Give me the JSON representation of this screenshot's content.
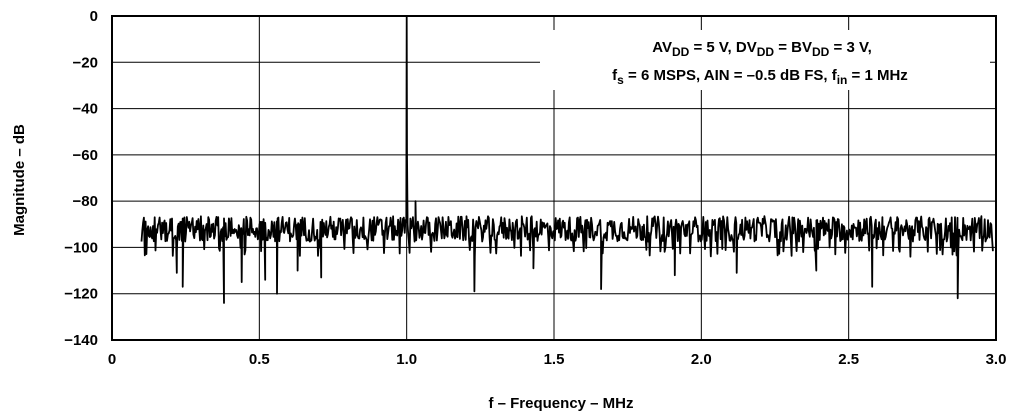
{
  "chart_data": {
    "type": "line",
    "xlabel": "f – Frequency – MHz",
    "ylabel": "Magnitude – dB",
    "xlim": [
      0,
      3.0
    ],
    "ylim": [
      -140,
      0
    ],
    "x_ticks": [
      0,
      0.5,
      1.0,
      1.5,
      2.0,
      2.5,
      3.0
    ],
    "x_tick_labels": [
      "0",
      "0.5",
      "1.0",
      "1.5",
      "2.0",
      "2.5",
      "3.0"
    ],
    "y_ticks": [
      0,
      -20,
      -40,
      -60,
      -80,
      -100,
      -120,
      -140
    ],
    "y_tick_labels": [
      "0",
      "−20",
      "−40",
      "−60",
      "−80",
      "−100",
      "−120",
      "−140"
    ],
    "grid": true,
    "annotation": {
      "line1": [
        {
          "text": "AV"
        },
        {
          "text": "DD",
          "sub": true
        },
        {
          "text": " = 5 V, DV"
        },
        {
          "text": "DD",
          "sub": true
        },
        {
          "text": " = BV"
        },
        {
          "text": "DD",
          "sub": true
        },
        {
          "text": " = 3 V,"
        }
      ],
      "line2": [
        {
          "text": "f"
        },
        {
          "text": "s",
          "sub": true
        },
        {
          "text": " = 6 MSPS, AIN = –0.5 dB FS, f"
        },
        {
          "text": "in",
          "sub": true
        },
        {
          "text": " = 1 MHz"
        }
      ]
    },
    "series": [
      {
        "x_start": 0.1,
        "x_end": 2.99,
        "noise_floor_mean": -92,
        "noise_range": [
          -100,
          -83
        ],
        "peak": {
          "x": 1.0,
          "y": 0
        },
        "spurs": [
          {
            "x": 0.22,
            "y": -111
          },
          {
            "x": 0.24,
            "y": -117
          },
          {
            "x": 0.38,
            "y": -124
          },
          {
            "x": 0.44,
            "y": -115
          },
          {
            "x": 0.52,
            "y": -114
          },
          {
            "x": 0.56,
            "y": -120
          },
          {
            "x": 0.63,
            "y": -110
          },
          {
            "x": 0.71,
            "y": -113
          },
          {
            "x": 1.03,
            "y": -80
          },
          {
            "x": 1.23,
            "y": -119
          },
          {
            "x": 1.43,
            "y": -109
          },
          {
            "x": 1.66,
            "y": -118
          },
          {
            "x": 1.91,
            "y": -112
          },
          {
            "x": 2.12,
            "y": -111
          },
          {
            "x": 2.39,
            "y": -110
          },
          {
            "x": 2.58,
            "y": -117
          },
          {
            "x": 2.87,
            "y": -122
          }
        ]
      }
    ]
  }
}
